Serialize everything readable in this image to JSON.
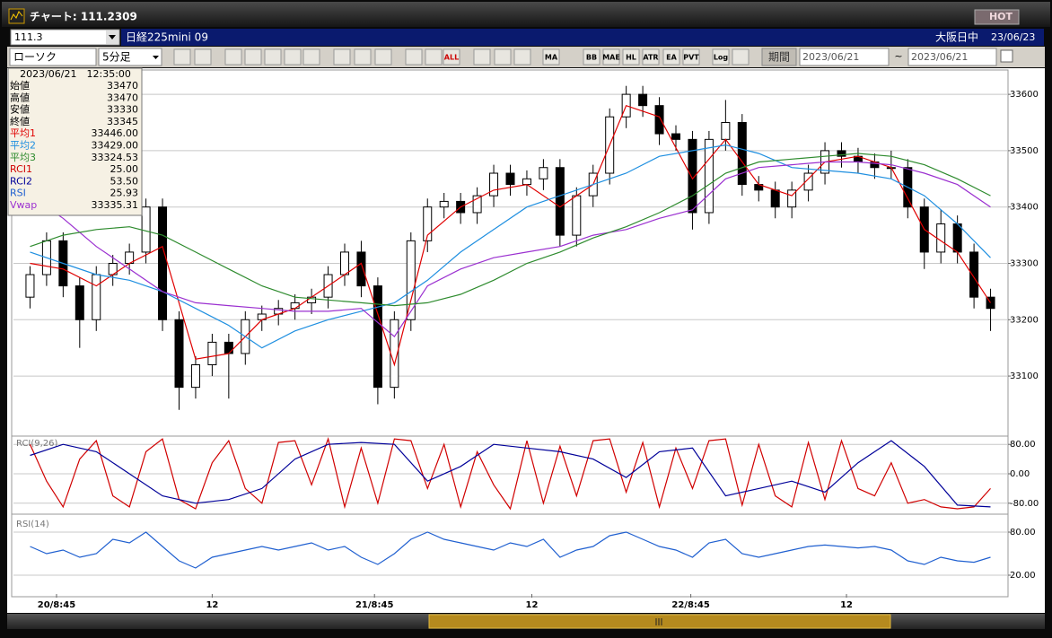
{
  "window": {
    "title": "チャート: 111.2309",
    "hot": "HOT"
  },
  "header": {
    "code": "111.3",
    "name": "日経225mini 09",
    "market": "大阪日中",
    "date": "23/06/23"
  },
  "toolbar": {
    "chart_style": "ローソク",
    "interval": "5分足",
    "icons": [
      "ALL",
      "MA",
      "BB",
      "MAE",
      "HL",
      "ATR",
      "EA",
      "PVT",
      "Log"
    ],
    "period_button": "期間",
    "from": "2023/06/21",
    "tilde": "~",
    "to": "2023/06/21"
  },
  "info_panel": {
    "datetime": "2023/06/21　12:35:00",
    "rows": [
      {
        "label": "始値",
        "value": "33470",
        "color": "#000000"
      },
      {
        "label": "高値",
        "value": "33470",
        "color": "#000000"
      },
      {
        "label": "安値",
        "value": "33330",
        "color": "#000000"
      },
      {
        "label": "終値",
        "value": "33345",
        "color": "#000000"
      },
      {
        "label": "平均1",
        "value": "33446.00",
        "color": "#e00000"
      },
      {
        "label": "平均2",
        "value": "33429.00",
        "color": "#1f8fe0"
      },
      {
        "label": "平均3",
        "value": "33324.53",
        "color": "#2e8b2e"
      },
      {
        "label": "RCI1",
        "value": "25.00",
        "color": "#d00000"
      },
      {
        "label": "RCI2",
        "value": "53.50",
        "color": "#000099"
      },
      {
        "label": "RSI",
        "value": "25.93",
        "color": "#2060d0"
      },
      {
        "label": "Vwap",
        "value": "33335.31",
        "color": "#9b30d0"
      }
    ]
  },
  "chart_data": [
    {
      "type": "candlestick",
      "up_color": "#ffffff",
      "down_color": "#000000",
      "grid": true,
      "xlim": [
        0,
        60
      ],
      "ylim": [
        32995,
        33640
      ],
      "yticks": [
        33100,
        33200,
        33300,
        33400,
        33500,
        33600
      ],
      "x": [
        1,
        2,
        3,
        4,
        5,
        6,
        7,
        8,
        9,
        10,
        11,
        12,
        13,
        14,
        15,
        16,
        17,
        18,
        19,
        20,
        21,
        22,
        23,
        24,
        25,
        26,
        27,
        28,
        29,
        30,
        31,
        32,
        33,
        34,
        35,
        36,
        37,
        38,
        39,
        40,
        41,
        42,
        43,
        44,
        45,
        46,
        47,
        48,
        49,
        50,
        51,
        52,
        53,
        54,
        55,
        56,
        57,
        58,
        59
      ],
      "open": [
        33240,
        33280,
        33340,
        33260,
        33200,
        33280,
        33300,
        33320,
        33400,
        33200,
        33080,
        33120,
        33160,
        33140,
        33200,
        33210,
        33220,
        33230,
        33240,
        33280,
        33320,
        33260,
        33080,
        33200,
        33340,
        33400,
        33410,
        33390,
        33420,
        33460,
        33440,
        33450,
        33470,
        33350,
        33420,
        33460,
        33560,
        33600,
        33580,
        33530,
        33520,
        33390,
        33520,
        33550,
        33440,
        33430,
        33400,
        33430,
        33460,
        33500,
        33490,
        33480,
        33470,
        33470,
        33400,
        33320,
        33370,
        33320,
        33240
      ],
      "high": [
        33295,
        33355,
        33355,
        33275,
        33295,
        33315,
        33335,
        33415,
        33415,
        33215,
        33135,
        33175,
        33175,
        33215,
        33225,
        33235,
        33245,
        33255,
        33295,
        33335,
        33340,
        33275,
        33215,
        33355,
        33415,
        33425,
        33425,
        33435,
        33475,
        33475,
        33465,
        33485,
        33485,
        33435,
        33475,
        33575,
        33615,
        33615,
        33595,
        33545,
        33535,
        33535,
        33590,
        33565,
        33455,
        33445,
        33445,
        33475,
        33515,
        33515,
        33505,
        33495,
        33500,
        33485,
        33415,
        33395,
        33385,
        33335,
        33255
      ],
      "low": [
        33220,
        33260,
        33240,
        33150,
        33180,
        33260,
        33280,
        33300,
        33180,
        33040,
        33060,
        33100,
        33060,
        33120,
        33180,
        33190,
        33200,
        33210,
        33220,
        33260,
        33240,
        33050,
        33060,
        33180,
        33320,
        33380,
        33370,
        33370,
        33400,
        33420,
        33420,
        33430,
        33330,
        33330,
        33400,
        33440,
        33540,
        33560,
        33510,
        33500,
        33360,
        33370,
        33500,
        33420,
        33410,
        33380,
        33380,
        33410,
        33440,
        33470,
        33460,
        33450,
        33450,
        33380,
        33290,
        33300,
        33300,
        33220,
        33180
      ],
      "close": [
        33280,
        33340,
        33260,
        33200,
        33280,
        33300,
        33320,
        33400,
        33200,
        33080,
        33120,
        33160,
        33140,
        33200,
        33210,
        33220,
        33230,
        33240,
        33280,
        33320,
        33260,
        33080,
        33200,
        33340,
        33400,
        33410,
        33390,
        33420,
        33460,
        33440,
        33450,
        33470,
        33350,
        33420,
        33460,
        33560,
        33600,
        33580,
        33530,
        33520,
        33390,
        33520,
        33550,
        33440,
        33430,
        33400,
        33430,
        33460,
        33500,
        33490,
        33480,
        33470,
        33470,
        33400,
        33320,
        33370,
        33320,
        33240,
        33220
      ],
      "series": [
        {
          "color": "#e00000",
          "x": [
            1,
            3,
            5,
            7,
            9,
            11,
            13,
            15,
            17,
            19,
            21,
            23,
            25,
            27,
            29,
            31,
            33,
            35,
            37,
            39,
            41,
            43,
            45,
            47,
            49,
            51,
            53,
            55,
            57,
            59
          ],
          "values": [
            33300,
            33290,
            33260,
            33300,
            33330,
            33130,
            33140,
            33200,
            33220,
            33260,
            33300,
            33120,
            33350,
            33400,
            33430,
            33440,
            33400,
            33440,
            33580,
            33560,
            33450,
            33520,
            33440,
            33420,
            33480,
            33490,
            33470,
            33360,
            33320,
            33230
          ]
        },
        {
          "color": "#1f8fe0",
          "x": [
            1,
            3,
            5,
            7,
            9,
            11,
            13,
            15,
            17,
            19,
            21,
            23,
            25,
            27,
            29,
            31,
            33,
            35,
            37,
            39,
            41,
            43,
            45,
            47,
            49,
            51,
            53,
            55,
            57,
            59
          ],
          "values": [
            33320,
            33300,
            33280,
            33270,
            33250,
            33220,
            33190,
            33150,
            33180,
            33200,
            33215,
            33230,
            33270,
            33320,
            33360,
            33400,
            33420,
            33440,
            33460,
            33490,
            33500,
            33510,
            33495,
            33470,
            33465,
            33460,
            33450,
            33420,
            33370,
            33310
          ]
        },
        {
          "color": "#9b30d0",
          "x": [
            1,
            3,
            5,
            7,
            9,
            11,
            13,
            15,
            17,
            19,
            21,
            23,
            25,
            27,
            29,
            31,
            33,
            35,
            37,
            39,
            41,
            43,
            45,
            47,
            49,
            51,
            53,
            55,
            57,
            59
          ],
          "values": [
            33420,
            33380,
            33330,
            33290,
            33250,
            33230,
            33225,
            33220,
            33215,
            33215,
            33220,
            33170,
            33260,
            33290,
            33310,
            33320,
            33330,
            33350,
            33360,
            33380,
            33395,
            33450,
            33470,
            33475,
            33480,
            33480,
            33475,
            33460,
            33440,
            33400
          ]
        },
        {
          "color": "#2e8b2e",
          "x": [
            1,
            3,
            5,
            7,
            9,
            11,
            13,
            15,
            17,
            19,
            21,
            23,
            25,
            27,
            29,
            31,
            33,
            35,
            37,
            39,
            41,
            43,
            45,
            47,
            49,
            51,
            53,
            55,
            57,
            59
          ],
          "values": [
            33330,
            33350,
            33360,
            33365,
            33350,
            33320,
            33290,
            33260,
            33240,
            33235,
            33230,
            33225,
            33230,
            33245,
            33270,
            33300,
            33320,
            33345,
            33365,
            33390,
            33420,
            33460,
            33480,
            33485,
            33490,
            33495,
            33490,
            33475,
            33450,
            33420
          ]
        }
      ]
    },
    {
      "type": "line",
      "title": "RCI(9,26)",
      "grid": true,
      "xlim": [
        0,
        60
      ],
      "ylim": [
        -100,
        100
      ],
      "yticks": [
        {
          "value": 80,
          "label": "80.00"
        },
        {
          "value": 0,
          "label": "0.00"
        },
        {
          "value": -80,
          "label": "-80.00"
        }
      ],
      "series": [
        {
          "color": "#d00000",
          "x": [
            1,
            2,
            3,
            4,
            5,
            6,
            7,
            8,
            9,
            10,
            11,
            12,
            13,
            14,
            15,
            16,
            17,
            18,
            19,
            20,
            21,
            22,
            23,
            24,
            25,
            26,
            27,
            28,
            29,
            30,
            31,
            32,
            33,
            34,
            35,
            36,
            37,
            38,
            39,
            40,
            41,
            42,
            43,
            44,
            45,
            46,
            47,
            48,
            49,
            50,
            51,
            52,
            53,
            54,
            55,
            56,
            57,
            58,
            59
          ],
          "values": [
            80,
            -20,
            -90,
            40,
            90,
            -60,
            -90,
            60,
            95,
            -70,
            -95,
            30,
            90,
            -40,
            -80,
            85,
            90,
            -30,
            95,
            -90,
            70,
            -80,
            95,
            90,
            -40,
            80,
            -90,
            60,
            -30,
            -95,
            90,
            -80,
            75,
            -60,
            90,
            95,
            -50,
            85,
            -90,
            70,
            -40,
            90,
            95,
            -85,
            80,
            -60,
            -90,
            85,
            -70,
            90,
            -40,
            -60,
            30,
            -80,
            -70,
            -90,
            -95,
            -90,
            -40
          ]
        },
        {
          "color": "#000099",
          "x": [
            1,
            3,
            5,
            7,
            9,
            11,
            13,
            15,
            17,
            19,
            21,
            23,
            25,
            27,
            29,
            31,
            33,
            35,
            37,
            39,
            41,
            43,
            45,
            47,
            49,
            51,
            53,
            55,
            57,
            59
          ],
          "values": [
            50,
            80,
            60,
            0,
            -60,
            -80,
            -70,
            -40,
            40,
            80,
            85,
            80,
            -20,
            20,
            80,
            70,
            60,
            40,
            -10,
            60,
            70,
            -60,
            -40,
            -20,
            -50,
            30,
            90,
            20,
            -85,
            -90
          ]
        }
      ]
    },
    {
      "type": "line",
      "title": "RSI(14)",
      "grid": true,
      "xlim": [
        0,
        60
      ],
      "ylim": [
        0,
        100
      ],
      "yticks": [
        {
          "value": 80,
          "label": "80.00"
        },
        {
          "value": 20,
          "label": "20.00"
        }
      ],
      "xticks": [
        {
          "value": 2.6,
          "label": "20/8:45"
        },
        12,
        {
          "value": 21.8,
          "label": "21/8:45"
        },
        {
          "value": 31.3,
          "label": "12"
        },
        {
          "value": 40.9,
          "label": "22/8:45"
        },
        {
          "value": 50.3,
          "label": "12"
        }
      ],
      "series": [
        {
          "color": "#2060d0",
          "x": [
            1,
            2,
            3,
            4,
            5,
            6,
            7,
            8,
            9,
            10,
            11,
            12,
            13,
            14,
            15,
            16,
            17,
            18,
            19,
            20,
            21,
            22,
            23,
            24,
            25,
            26,
            27,
            28,
            29,
            30,
            31,
            32,
            33,
            34,
            35,
            36,
            37,
            38,
            39,
            40,
            41,
            42,
            43,
            44,
            45,
            46,
            47,
            48,
            49,
            50,
            51,
            52,
            53,
            54,
            55,
            56,
            57,
            58,
            59
          ],
          "values": [
            60,
            50,
            55,
            45,
            50,
            70,
            65,
            80,
            60,
            40,
            30,
            45,
            50,
            55,
            60,
            55,
            60,
            65,
            55,
            60,
            45,
            35,
            50,
            70,
            80,
            70,
            65,
            60,
            55,
            65,
            60,
            70,
            45,
            55,
            60,
            75,
            80,
            70,
            60,
            55,
            45,
            65,
            70,
            50,
            45,
            50,
            55,
            60,
            62,
            60,
            58,
            60,
            55,
            40,
            35,
            45,
            40,
            38,
            45
          ]
        }
      ]
    }
  ]
}
